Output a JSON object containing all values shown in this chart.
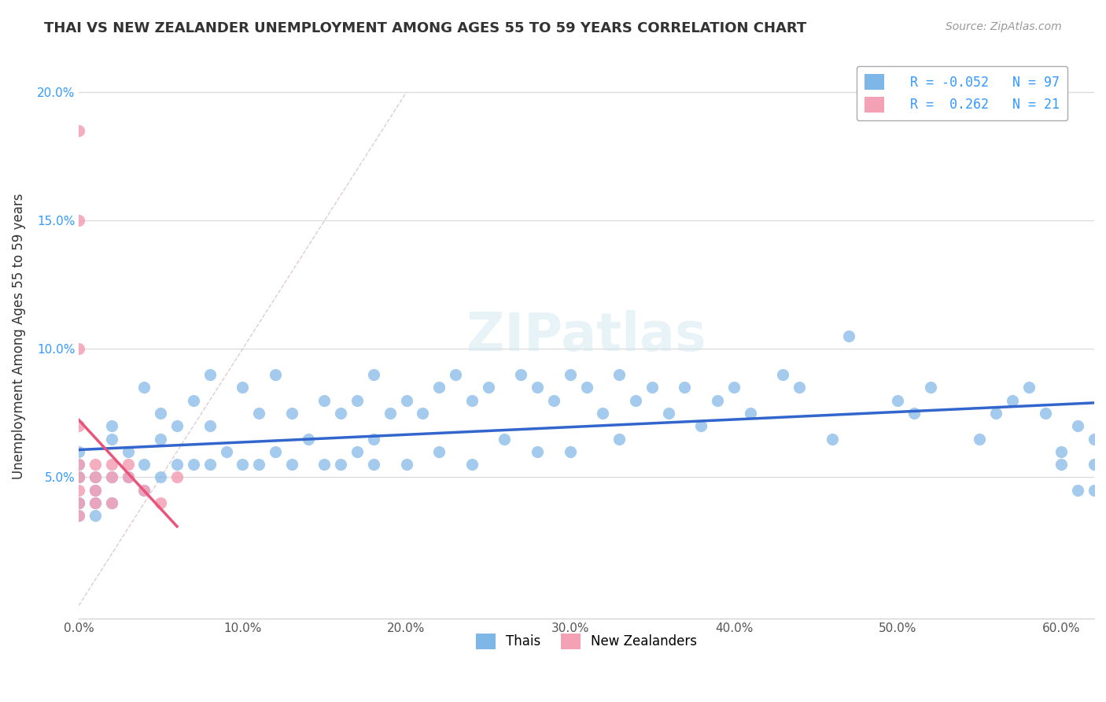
{
  "title": "THAI VS NEW ZEALANDER UNEMPLOYMENT AMONG AGES 55 TO 59 YEARS CORRELATION CHART",
  "source": "Source: ZipAtlas.com",
  "xlabel": "",
  "ylabel": "Unemployment Among Ages 55 to 59 years",
  "xlim": [
    0.0,
    0.62
  ],
  "ylim": [
    -0.005,
    0.215
  ],
  "xticks": [
    0.0,
    0.1,
    0.2,
    0.3,
    0.4,
    0.5,
    0.6
  ],
  "xticklabels": [
    "0.0%",
    "10.0%",
    "20.0%",
    "30.0%",
    "40.0%",
    "50.0%",
    "60.0%"
  ],
  "yticks": [
    0.05,
    0.1,
    0.15,
    0.2
  ],
  "yticklabels": [
    "5.0%",
    "10.0%",
    "15.0%",
    "20.0%"
  ],
  "background_color": "#ffffff",
  "grid_color": "#dddddd",
  "title_color": "#333333",
  "source_color": "#999999",
  "watermark": "ZIPatlas",
  "blue_color": "#7EB6E8",
  "pink_color": "#F4A0B5",
  "blue_line_color": "#3366CC",
  "pink_line_color": "#E8547A",
  "blue_R": -0.052,
  "blue_N": 97,
  "pink_R": 0.262,
  "pink_N": 21,
  "thais_x": [
    0.0,
    0.0,
    0.0,
    0.0,
    0.0,
    0.0,
    0.0,
    0.01,
    0.01,
    0.01,
    0.01,
    0.02,
    0.02,
    0.02,
    0.02,
    0.03,
    0.03,
    0.04,
    0.04,
    0.04,
    0.05,
    0.05,
    0.05,
    0.06,
    0.06,
    0.07,
    0.07,
    0.08,
    0.08,
    0.08,
    0.09,
    0.1,
    0.1,
    0.11,
    0.11,
    0.12,
    0.12,
    0.13,
    0.13,
    0.14,
    0.15,
    0.15,
    0.16,
    0.16,
    0.17,
    0.17,
    0.18,
    0.18,
    0.18,
    0.19,
    0.2,
    0.2,
    0.21,
    0.22,
    0.22,
    0.23,
    0.24,
    0.24,
    0.25,
    0.26,
    0.27,
    0.28,
    0.28,
    0.29,
    0.3,
    0.3,
    0.31,
    0.32,
    0.33,
    0.33,
    0.34,
    0.35,
    0.36,
    0.37,
    0.38,
    0.39,
    0.4,
    0.41,
    0.43,
    0.44,
    0.46,
    0.47,
    0.5,
    0.51,
    0.52,
    0.55,
    0.56,
    0.57,
    0.58,
    0.59,
    0.6,
    0.6,
    0.61,
    0.61,
    0.62,
    0.62,
    0.62
  ],
  "thais_y": [
    0.06,
    0.055,
    0.05,
    0.05,
    0.04,
    0.04,
    0.035,
    0.05,
    0.045,
    0.04,
    0.035,
    0.07,
    0.065,
    0.05,
    0.04,
    0.06,
    0.05,
    0.085,
    0.055,
    0.045,
    0.075,
    0.065,
    0.05,
    0.07,
    0.055,
    0.08,
    0.055,
    0.09,
    0.07,
    0.055,
    0.06,
    0.085,
    0.055,
    0.075,
    0.055,
    0.09,
    0.06,
    0.075,
    0.055,
    0.065,
    0.08,
    0.055,
    0.075,
    0.055,
    0.08,
    0.06,
    0.09,
    0.065,
    0.055,
    0.075,
    0.08,
    0.055,
    0.075,
    0.085,
    0.06,
    0.09,
    0.08,
    0.055,
    0.085,
    0.065,
    0.09,
    0.085,
    0.06,
    0.08,
    0.09,
    0.06,
    0.085,
    0.075,
    0.09,
    0.065,
    0.08,
    0.085,
    0.075,
    0.085,
    0.07,
    0.08,
    0.085,
    0.075,
    0.09,
    0.085,
    0.065,
    0.105,
    0.08,
    0.075,
    0.085,
    0.065,
    0.075,
    0.08,
    0.085,
    0.075,
    0.06,
    0.055,
    0.045,
    0.07,
    0.045,
    0.055,
    0.065
  ],
  "nz_x": [
    0.0,
    0.0,
    0.0,
    0.0,
    0.0,
    0.0,
    0.0,
    0.0,
    0.0,
    0.01,
    0.01,
    0.01,
    0.01,
    0.02,
    0.02,
    0.02,
    0.03,
    0.03,
    0.04,
    0.05,
    0.06
  ],
  "nz_y": [
    0.185,
    0.15,
    0.1,
    0.07,
    0.055,
    0.05,
    0.045,
    0.04,
    0.035,
    0.055,
    0.05,
    0.045,
    0.04,
    0.055,
    0.05,
    0.04,
    0.055,
    0.05,
    0.045,
    0.04,
    0.05
  ]
}
